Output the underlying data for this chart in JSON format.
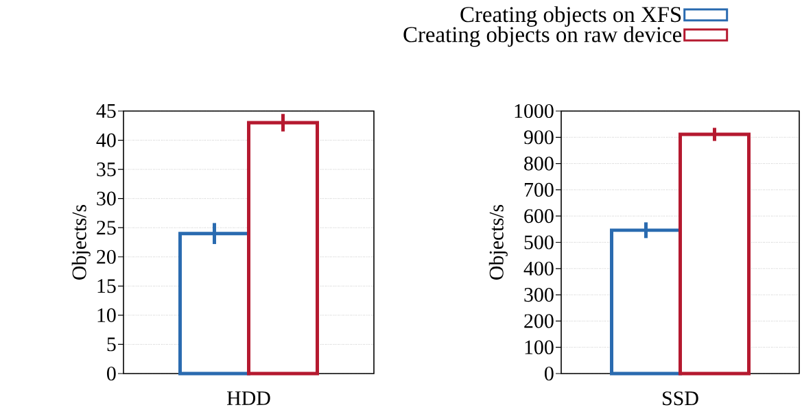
{
  "chart_data": [
    {
      "type": "bar",
      "categories": [
        "HDD"
      ],
      "ylabel": "Objects/s",
      "ylim": [
        0,
        45
      ],
      "yticks": [
        0,
        5,
        10,
        15,
        20,
        25,
        30,
        35,
        40,
        45
      ],
      "grid": "y",
      "series": [
        {
          "color": "#2a6bb0",
          "values": [
            24
          ],
          "errors": [
            1.8
          ]
        },
        {
          "color": "#b5192f",
          "values": [
            43
          ],
          "errors": [
            1.5
          ]
        }
      ]
    },
    {
      "type": "bar",
      "categories": [
        "SSD"
      ],
      "ylabel": "Objects/s",
      "ylim": [
        0,
        1000
      ],
      "yticks": [
        0,
        100,
        200,
        300,
        400,
        500,
        600,
        700,
        800,
        900,
        1000
      ],
      "grid": "y",
      "legend": "top",
      "series": [
        {
          "name": "Creating objects on XFS",
          "color": "#2a6bb0",
          "values": [
            546
          ],
          "errors": [
            30
          ]
        },
        {
          "name": "Creating objects on raw device",
          "color": "#b5192f",
          "values": [
            911
          ],
          "errors": [
            25
          ]
        }
      ]
    }
  ]
}
